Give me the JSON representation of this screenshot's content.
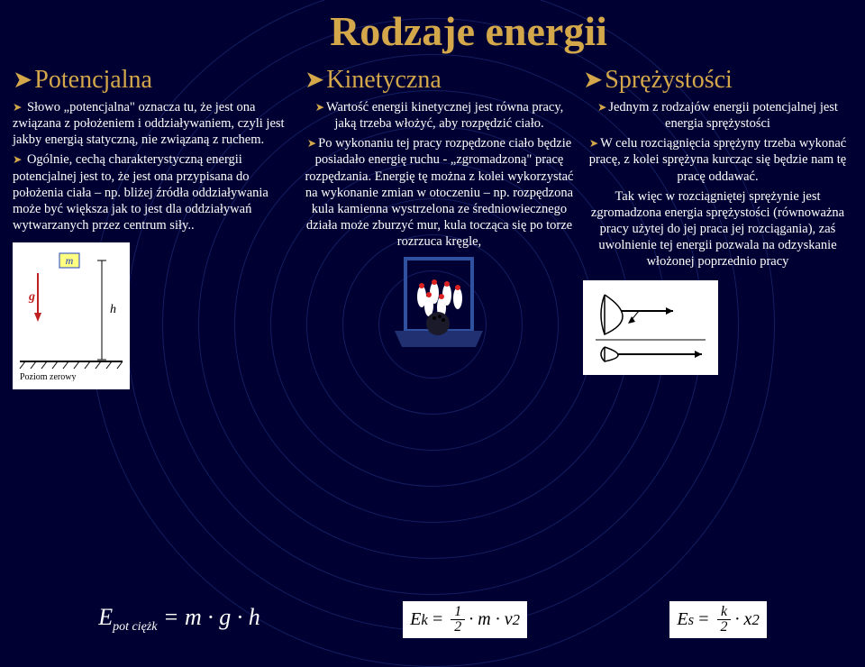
{
  "title": "Rodzaje energii",
  "rings": [
    120,
    200,
    280,
    360,
    440,
    520,
    600,
    680,
    760
  ],
  "col1": {
    "heading": "Potencjalna",
    "p1": "Słowo „potencjalna\" oznacza tu, że jest ona związana z położeniem i oddziaływaniem, czyli jest jakby energią statyczną, nie związaną z ruchem.",
    "p2": "Ogólnie, cechą charakterystyczną energii potencjalnej jest to, że jest ona przypisana do położenia ciała – np. bliżej źródła oddziaływania może być większa jak to jest dla oddziaływań wytwarzanych przez centrum siły..",
    "diagram": {
      "m_label": "m",
      "g_label": "g",
      "h_label": "h",
      "zero_label": "Poziom zerowy",
      "m_color": "#2040c0",
      "g_color": "#c02020",
      "bg": "#ffffff"
    }
  },
  "col2": {
    "heading": "Kinetyczna",
    "p1": "Wartość energii kinetycznej jest równa pracy, jaką trzeba włożyć, aby rozpędzić ciało.",
    "p2": "Po wykonaniu tej pracy rozpędzone ciało będzie posiadało energię ruchu - „zgromadzoną\" pracę rozpędzania. Energię tę można z kolei wykorzystać na wykonanie zmian w otoczeniu – np. rozpędzona kula kamienna wystrzelona ze średniowiecznego działa może zburzyć mur, kula tocząca się po torze rozrzuca kręgle,",
    "diagram": {
      "frame_color": "#203080",
      "base_color": "#102050",
      "ball_color": "#202030",
      "pin_body": "#ffffff",
      "pin_top": "#d22020"
    }
  },
  "col3": {
    "heading": "Sprężystości",
    "p1": "Jednym z rodzajów energii potencjalnej jest energia sprężystości",
    "p2": "W celu rozciągnięcia sprężyny trzeba wykonać pracę, z kolei sprężyna kurcząc się będzie nam tę pracę oddawać.",
    "p3": "Tak więc w rozciągniętej sprężynie jest zgromadzona energia sprężystości (równoważna pracy użytej do jej praca jej rozciągania), zaś uwolnienie tej energii pozwala na odzyskanie włożonej poprzednio pracy",
    "diagram": {
      "bg": "#ffffff",
      "line": "#000000"
    }
  },
  "formulas": {
    "f1": {
      "E": "E",
      "sub": "pot ciężk",
      "eq": " = m · g · h"
    },
    "f2": {
      "lhs": "E",
      "sub": "k",
      "num": "1",
      "den": "2",
      "tail": "· m · v",
      "exp": "2"
    },
    "f3": {
      "lhs": "E",
      "sub": "s",
      "num": "k",
      "den": "2",
      "tail": "· x",
      "exp": "2"
    }
  }
}
